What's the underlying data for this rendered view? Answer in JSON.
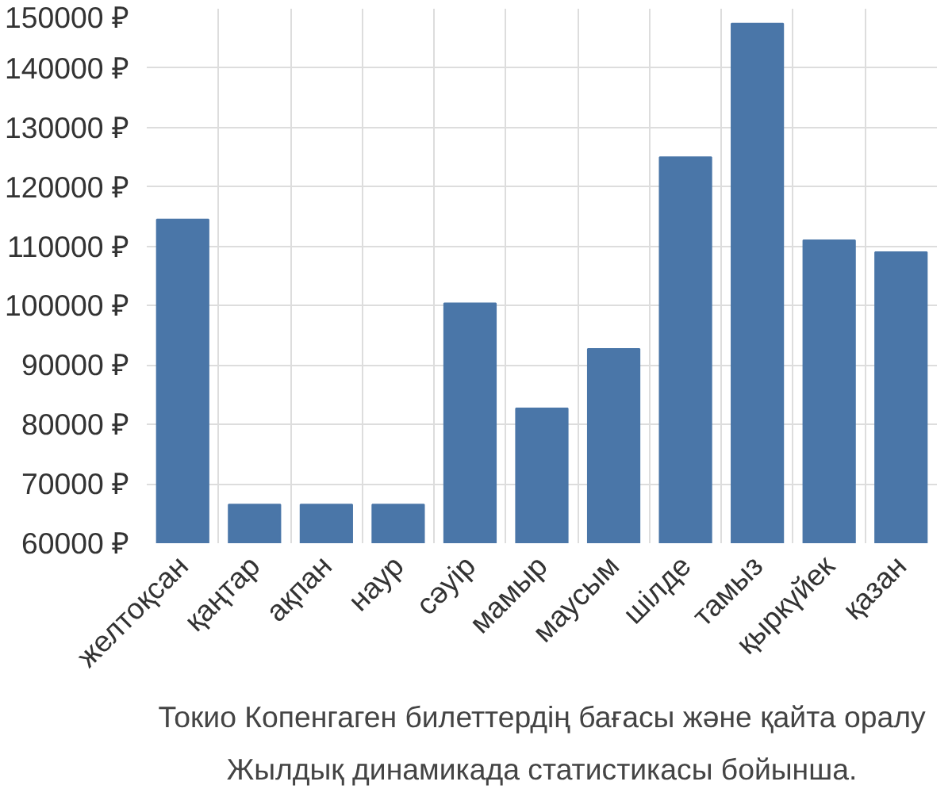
{
  "chart_data": {
    "type": "bar",
    "categories": [
      "желтоқсан",
      "қаңтар",
      "ақпан",
      "наур",
      "сәуір",
      "мамыр",
      "маусым",
      "шілде",
      "тамыз",
      "қыркүйек",
      "қазан"
    ],
    "values": [
      114500,
      66500,
      66500,
      66500,
      100400,
      82700,
      92700,
      125000,
      147500,
      111000,
      109000
    ],
    "color": "#4a76a8",
    "ylim": [
      60000,
      150000
    ],
    "yticks": [
      {
        "value": 60000,
        "label": "60000 ₽"
      },
      {
        "value": 70000,
        "label": "70000 ₽"
      },
      {
        "value": 80000,
        "label": "80000 ₽"
      },
      {
        "value": 90000,
        "label": "90000 ₽"
      },
      {
        "value": 100000,
        "label": "100000 ₽"
      },
      {
        "value": 110000,
        "label": "110000 ₽"
      },
      {
        "value": 120000,
        "label": "120000 ₽"
      },
      {
        "value": 130000,
        "label": "130000 ₽"
      },
      {
        "value": 140000,
        "label": "140000 ₽"
      },
      {
        "value": 150000,
        "label": "150000 ₽"
      }
    ],
    "grid": true,
    "annotations": [
      "Токио Копенгаген билеттердің бағасы және қайта оралу",
      "Жылдық динамикада статистикасы бойынша."
    ]
  }
}
